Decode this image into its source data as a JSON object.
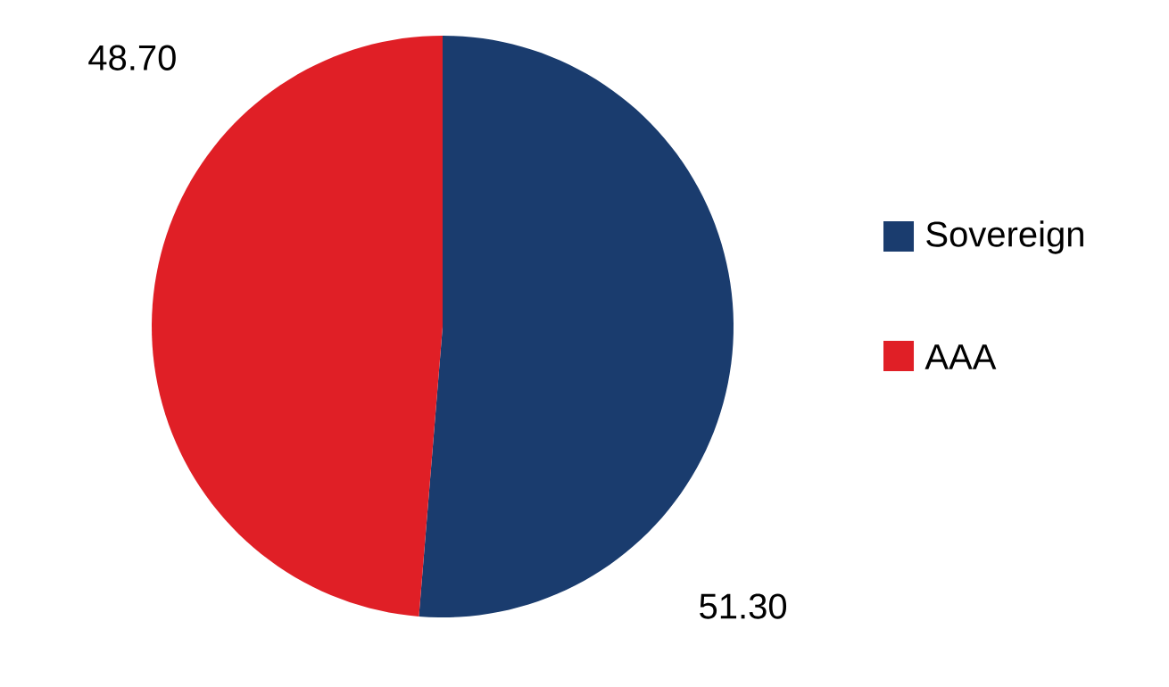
{
  "chart_data": {
    "type": "pie",
    "categories": [
      "Sovereign",
      "AAA"
    ],
    "values": [
      51.3,
      48.7
    ],
    "colors": [
      "#1a3c6e",
      "#e01f26"
    ],
    "value_labels": [
      "51.30",
      "48.70"
    ],
    "legend": "right"
  }
}
